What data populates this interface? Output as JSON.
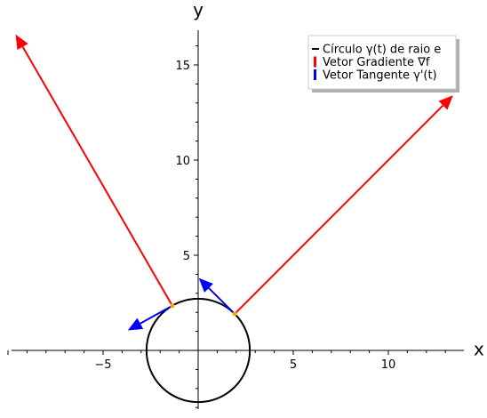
{
  "chart_data": {
    "type": "line",
    "xlabel": "x",
    "ylabel": "y",
    "xlim": [
      -10,
      14
    ],
    "ylim": [
      -3,
      17
    ],
    "x_ticks": [
      -5,
      5,
      10
    ],
    "y_ticks": [
      5,
      10,
      15
    ],
    "grid": false,
    "legend_placement": "top-right",
    "circle": {
      "name": "Círculo γ(t) de raio e",
      "center": [
        0,
        0
      ],
      "radius": 2.718,
      "color": "#000000"
    },
    "points": [
      {
        "x": 1.92,
        "y": 1.92,
        "color": "#ffa500"
      },
      {
        "x": -1.36,
        "y": 2.35,
        "color": "#ffa500"
      }
    ],
    "series": [
      {
        "name": "Vetor Gradiente ∇f",
        "color": "#ff0000",
        "vectors": [
          {
            "from": [
              1.92,
              1.92
            ],
            "to": [
              13.4,
              13.4
            ]
          },
          {
            "from": [
              -1.36,
              2.35
            ],
            "to": [
              -9.6,
              16.6
            ]
          }
        ]
      },
      {
        "name": "Vetor Tangente γ'(t)",
        "color": "#0000ff",
        "vectors": [
          {
            "from": [
              1.92,
              1.92
            ],
            "to": [
              0.03,
              3.8
            ]
          },
          {
            "from": [
              -1.36,
              2.35
            ],
            "to": [
              -3.7,
              1.05
            ]
          }
        ]
      }
    ]
  }
}
